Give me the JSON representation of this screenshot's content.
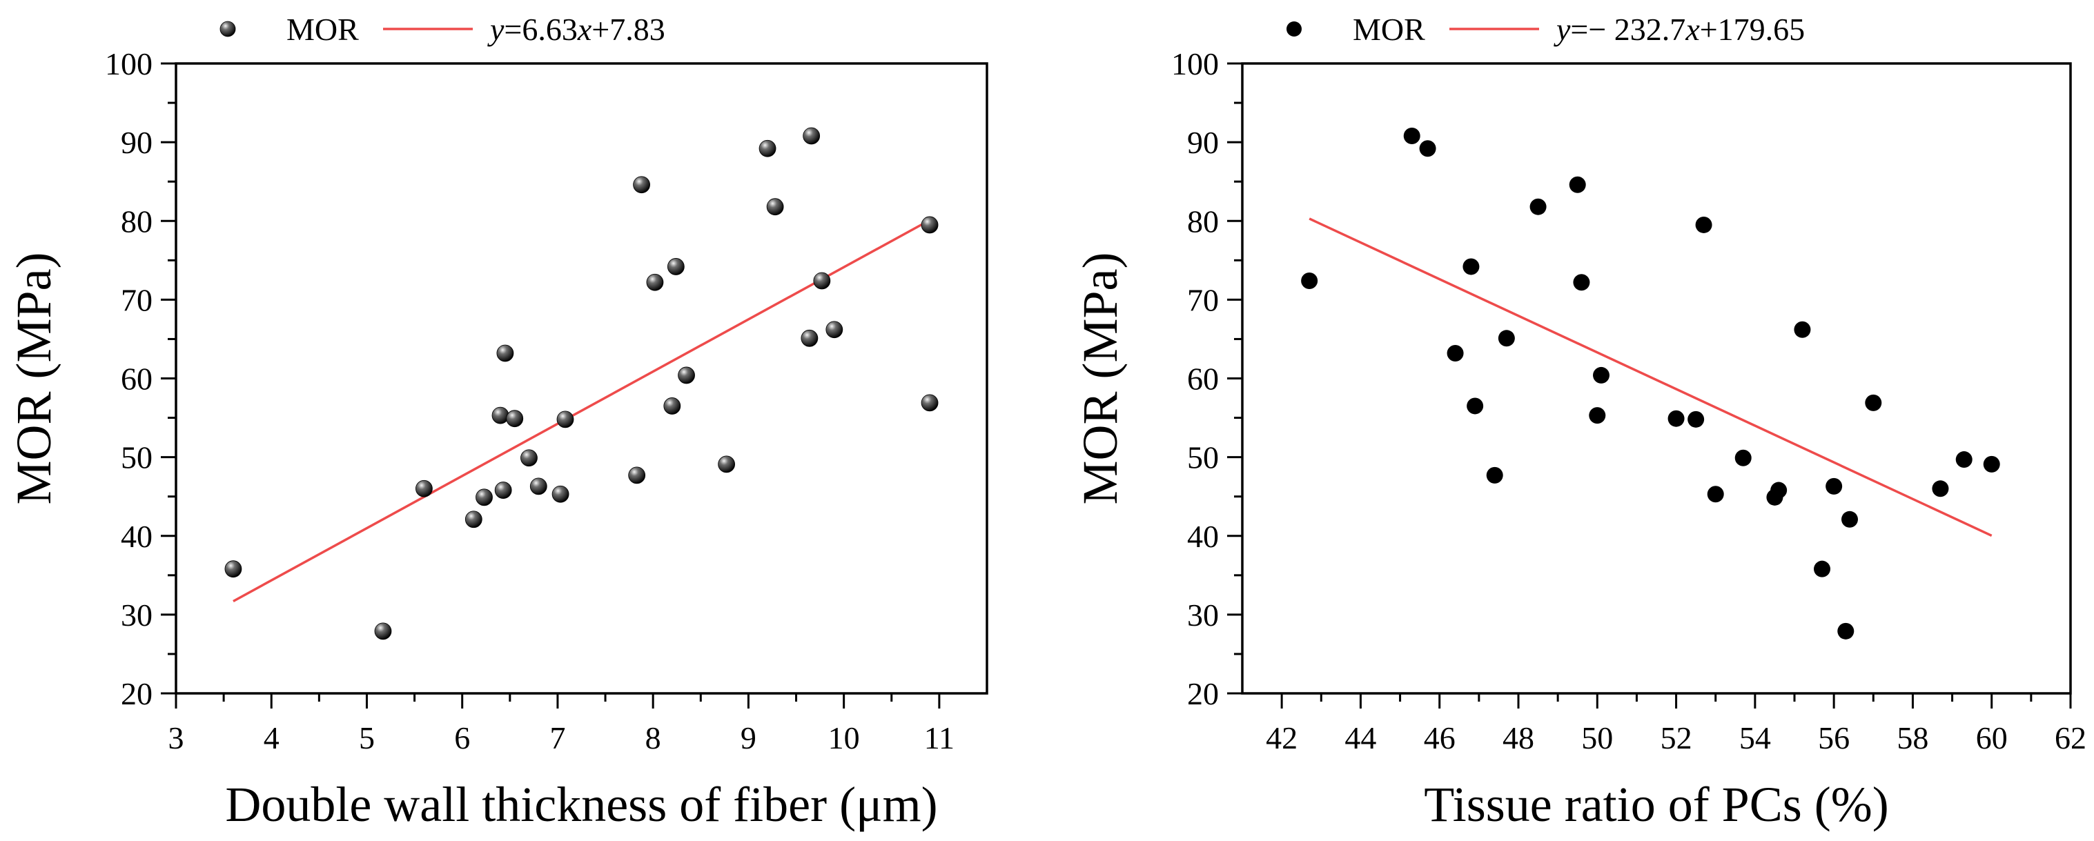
{
  "chart_data": [
    {
      "type": "scatter",
      "title": "",
      "xlabel": "Double wall thickness of fiber (μm)",
      "ylabel": "MOR (MPa)",
      "xlim": [
        3,
        11.5
      ],
      "ylim": [
        20,
        100
      ],
      "x_ticks": [
        "3",
        "4",
        "5",
        "6",
        "7",
        "8",
        "9",
        "10",
        "11"
      ],
      "y_ticks": [
        "20",
        "30",
        "40",
        "50",
        "60",
        "70",
        "80",
        "90",
        "100"
      ],
      "grid": false,
      "legend_position": "top",
      "marker_style": "sphere",
      "series": [
        {
          "name": "MOR",
          "points": [
            [
              3.6,
              35.8
            ],
            [
              5.17,
              27.9
            ],
            [
              5.6,
              46.0
            ],
            [
              6.12,
              42.1
            ],
            [
              6.23,
              44.9
            ],
            [
              6.4,
              55.3
            ],
            [
              6.43,
              45.8
            ],
            [
              6.45,
              63.2
            ],
            [
              6.55,
              54.9
            ],
            [
              6.7,
              49.9
            ],
            [
              6.8,
              46.3
            ],
            [
              7.03,
              45.3
            ],
            [
              7.08,
              54.8
            ],
            [
              7.83,
              47.7
            ],
            [
              7.88,
              84.6
            ],
            [
              8.02,
              72.2
            ],
            [
              8.2,
              56.5
            ],
            [
              8.24,
              74.2
            ],
            [
              8.35,
              60.4
            ],
            [
              8.77,
              49.1
            ],
            [
              9.2,
              89.2
            ],
            [
              9.28,
              81.8
            ],
            [
              9.64,
              65.1
            ],
            [
              9.66,
              90.8
            ],
            [
              9.77,
              72.4
            ],
            [
              9.9,
              66.2
            ],
            [
              10.9,
              79.5
            ],
            [
              10.9,
              56.9
            ]
          ]
        }
      ],
      "fit": {
        "name": "y=6.63x+7.83",
        "label_prefix": "y",
        "label_mid": "=6.63",
        "label_var": "x",
        "label_suffix": "+7.83",
        "slope": 6.63,
        "intercept": 7.83,
        "x_range": [
          3.6,
          10.9
        ],
        "color": "#ee4b4b"
      }
    },
    {
      "type": "scatter",
      "title": "",
      "xlabel": "Tissue ratio of PCs (%)",
      "ylabel": "MOR (MPa)",
      "xlim": [
        41,
        62
      ],
      "ylim": [
        20,
        100
      ],
      "x_ticks": [
        "42",
        "44",
        "46",
        "48",
        "50",
        "52",
        "54",
        "56",
        "58",
        "60",
        "62"
      ],
      "y_ticks": [
        "20",
        "30",
        "40",
        "50",
        "60",
        "70",
        "80",
        "90",
        "100"
      ],
      "grid": false,
      "legend_position": "top",
      "marker_style": "solid",
      "series": [
        {
          "name": "MOR",
          "points": [
            [
              42.7,
              72.4
            ],
            [
              45.3,
              90.8
            ],
            [
              45.7,
              89.2
            ],
            [
              46.4,
              63.2
            ],
            [
              46.8,
              74.2
            ],
            [
              46.9,
              56.5
            ],
            [
              47.4,
              47.7
            ],
            [
              47.7,
              65.1
            ],
            [
              48.5,
              81.8
            ],
            [
              49.5,
              84.6
            ],
            [
              49.6,
              72.2
            ],
            [
              50.0,
              55.3
            ],
            [
              50.1,
              60.4
            ],
            [
              52.0,
              54.9
            ],
            [
              52.5,
              54.8
            ],
            [
              52.7,
              79.5
            ],
            [
              53.0,
              45.3
            ],
            [
              53.7,
              49.9
            ],
            [
              54.5,
              44.9
            ],
            [
              54.6,
              45.8
            ],
            [
              55.2,
              66.2
            ],
            [
              55.7,
              35.8
            ],
            [
              56.0,
              46.3
            ],
            [
              56.3,
              27.9
            ],
            [
              56.4,
              42.1
            ],
            [
              57.0,
              56.9
            ],
            [
              58.7,
              46.0
            ],
            [
              59.3,
              49.7
            ],
            [
              60.0,
              49.1
            ]
          ]
        }
      ],
      "fit": {
        "name": "y=− 232.7x+179.65",
        "label_prefix": "y",
        "label_mid": "=− 232.7",
        "label_var": "x",
        "label_suffix": "+179.65",
        "slope": -2.327,
        "intercept": 179.65,
        "x_range": [
          42.7,
          60.0
        ],
        "color": "#ee4b4b"
      }
    }
  ]
}
